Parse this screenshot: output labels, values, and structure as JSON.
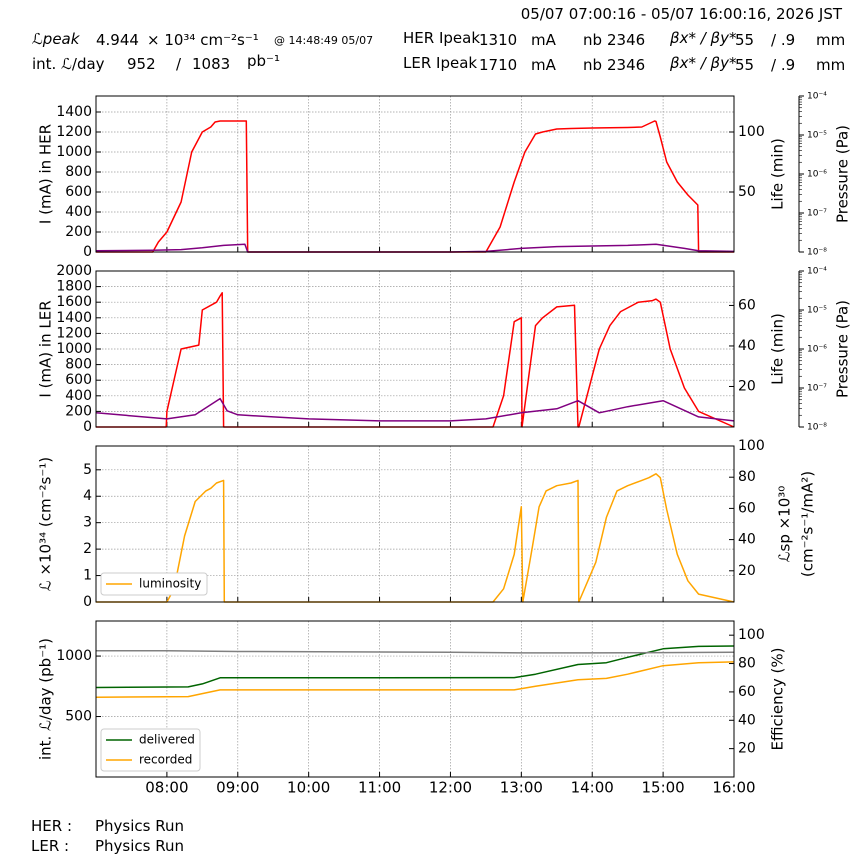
{
  "header": {
    "time_range": "05/07 07:00:16 - 05/07 16:00:16, 2026 JST",
    "lpeak_label": "ℒpeak",
    "lpeak_value": "4.944",
    "lpeak_units": "× 10³⁴ cm⁻²s⁻¹",
    "lpeak_time": "@ 14:48:49 05/07",
    "intl_label": "int. ℒ/day",
    "intl_value": "952",
    "intl_slash": "/",
    "intl_total": "1083",
    "intl_units": "pb⁻¹",
    "her_label": "HER Ipeak",
    "her_current": "1310",
    "ler_label": "LER Ipeak",
    "ler_current": "1710",
    "current_unit": "mA",
    "nb_label": "nb",
    "her_nb": "2346",
    "ler_nb": "2346",
    "beta_label": "βx* / βy*",
    "beta_x": "55",
    "beta_y": "/ .9",
    "beta_unit": "mm"
  },
  "footer": {
    "her_label": "HER :",
    "her_status": "Physics Run",
    "ler_label": "LER :",
    "ler_status": "Physics Run"
  },
  "colors": {
    "current": "#ff0000",
    "life": "#800080",
    "pressure": "#00ffff",
    "luminosity": "#ffa500",
    "specific": "#0000ff",
    "delivered": "#006400",
    "recorded": "#ffa500",
    "efficiency": "#808080"
  },
  "chart_data": [
    {
      "type": "line",
      "ylabel": "I (mA) in HER",
      "y2label": "Life (min)",
      "y3label": "Pressure (Pa)",
      "ylim": [
        0,
        1560
      ],
      "yticks": [
        0,
        200,
        400,
        600,
        800,
        1000,
        1200,
        1400
      ],
      "y2lim": [
        0,
        130
      ],
      "y2ticks": [
        50,
        100
      ],
      "y3ticks": [
        "10⁻⁸",
        "10⁻⁷",
        "10⁻⁶",
        "10⁻⁵",
        "10⁻⁴"
      ],
      "series": [
        {
          "role": "current",
          "x": [
            7.0,
            7.8,
            7.88,
            8.0,
            8.2,
            8.35,
            8.5,
            8.62,
            8.68,
            8.75,
            8.85,
            9.0,
            9.12,
            9.14,
            9.2,
            12.0,
            12.5,
            12.7,
            12.9,
            13.0,
            13.05,
            13.2,
            13.3,
            13.5,
            13.7,
            14.0,
            14.5,
            14.7,
            14.85,
            14.88,
            14.9,
            14.96,
            15.05,
            15.2,
            15.35,
            15.49,
            15.5,
            16.0
          ],
          "y": [
            0,
            0,
            100,
            200,
            500,
            1000,
            1200,
            1250,
            1300,
            1310,
            1310,
            1310,
            1310,
            0,
            0,
            0,
            0,
            250,
            700,
            900,
            1000,
            1180,
            1200,
            1230,
            1235,
            1240,
            1245,
            1250,
            1300,
            1310,
            1305,
            1150,
            900,
            700,
            570,
            470,
            0,
            0
          ]
        },
        {
          "role": "life",
          "axis": "y2",
          "x": [
            7.0,
            7.8,
            8.2,
            8.5,
            8.8,
            9.1,
            9.14,
            12.0,
            12.5,
            13.0,
            13.5,
            14.0,
            14.5,
            14.9,
            15.3,
            15.5,
            16.0
          ],
          "y": [
            1,
            1.5,
            2,
            3.5,
            5.5,
            6.5,
            0,
            0,
            0.5,
            3,
            4.5,
            5,
            5.5,
            6.5,
            3,
            1,
            0.5
          ]
        }
      ]
    },
    {
      "type": "line",
      "ylabel": "I (mA) in LER",
      "y2label": "Life (min)",
      "y3label": "Pressure (Pa)",
      "ylim": [
        0,
        2000
      ],
      "yticks": [
        0,
        200,
        400,
        600,
        800,
        1000,
        1200,
        1400,
        1600,
        1800,
        2000
      ],
      "y2lim": [
        0,
        77
      ],
      "y2ticks": [
        20,
        40,
        60
      ],
      "y3ticks": [
        "10⁻⁸",
        "10⁻⁷",
        "10⁻⁶",
        "10⁻⁵",
        "10⁻⁴"
      ],
      "series": [
        {
          "role": "current",
          "x": [
            7.0,
            7.99,
            8.0,
            8.2,
            8.45,
            8.5,
            8.7,
            8.75,
            8.78,
            8.8,
            12.0,
            12.6,
            12.75,
            12.9,
            13.0,
            13.01,
            13.2,
            13.3,
            13.5,
            13.75,
            13.8,
            13.81,
            14.1,
            14.25,
            14.4,
            14.65,
            14.85,
            14.9,
            14.96,
            15.1,
            15.3,
            15.5,
            16.0
          ],
          "y": [
            0,
            0,
            200,
            1000,
            1050,
            1500,
            1600,
            1680,
            1720,
            0,
            0,
            0,
            400,
            1350,
            1400,
            0,
            1300,
            1400,
            1540,
            1560,
            0,
            0,
            1000,
            1300,
            1480,
            1600,
            1620,
            1640,
            1600,
            1000,
            500,
            200,
            0
          ]
        },
        {
          "role": "life",
          "axis": "y2",
          "x": [
            7.0,
            8.0,
            8.4,
            8.75,
            8.85,
            9.0,
            9.5,
            10.0,
            11.0,
            12.0,
            12.5,
            13.0,
            13.5,
            13.8,
            14.1,
            14.5,
            15.0,
            15.5,
            16.0
          ],
          "y": [
            7,
            4,
            6,
            14,
            8,
            6,
            5,
            4,
            3,
            3,
            4,
            7,
            9,
            13,
            7,
            10,
            13,
            5,
            3
          ]
        }
      ]
    },
    {
      "type": "line",
      "ylabel": "ℒ ×10³⁴ (cm⁻²s⁻¹)",
      "y2label": "ℒsp ×10³⁰",
      "y2label2": "(cm⁻²s⁻¹/mA²)",
      "ylim": [
        0,
        5.9
      ],
      "yticks": [
        0,
        1,
        2,
        3,
        4,
        5
      ],
      "y2lim": [
        0,
        100
      ],
      "y2ticks": [
        20,
        40,
        60,
        80,
        100
      ],
      "legend": "luminosity",
      "series": [
        {
          "role": "luminosity",
          "name": "luminosity",
          "x": [
            7.0,
            8.0,
            8.1,
            8.25,
            8.4,
            8.55,
            8.62,
            8.7,
            8.8,
            8.81,
            12.0,
            12.6,
            12.75,
            12.9,
            13.0,
            13.02,
            13.15,
            13.25,
            13.35,
            13.5,
            13.7,
            13.8,
            13.81,
            14.05,
            14.2,
            14.35,
            14.5,
            14.7,
            14.8,
            14.9,
            14.96,
            15.05,
            15.2,
            15.35,
            15.5,
            16.0
          ],
          "y": [
            0,
            0,
            0.5,
            2.5,
            3.8,
            4.2,
            4.3,
            4.5,
            4.6,
            0,
            0,
            0,
            0.5,
            1.8,
            3.6,
            0,
            2.0,
            3.6,
            4.2,
            4.4,
            4.5,
            4.6,
            0,
            1.5,
            3.2,
            4.2,
            4.4,
            4.6,
            4.7,
            4.85,
            4.7,
            3.5,
            1.8,
            0.8,
            0.3,
            0
          ]
        }
      ]
    },
    {
      "type": "line",
      "ylabel": "int. ℒ/day (pb⁻¹)",
      "y2label": "Efficiency (%)",
      "ylim": [
        0,
        1290
      ],
      "yticks": [
        500,
        1000
      ],
      "y2lim": [
        0,
        110
      ],
      "y2ticks": [
        20,
        40,
        60,
        80,
        100
      ],
      "legend": [
        "delivered",
        "recorded"
      ],
      "x_ticks": [
        "08:00",
        "09:00",
        "10:00",
        "11:00",
        "12:00",
        "13:00",
        "14:00",
        "15:00",
        "16:00"
      ],
      "series": [
        {
          "role": "delivered",
          "name": "delivered",
          "x": [
            7.0,
            8.3,
            8.5,
            8.75,
            12.9,
            13.2,
            13.8,
            14.2,
            14.5,
            15.0,
            15.5,
            16.0
          ],
          "y": [
            740,
            745,
            770,
            820,
            822,
            850,
            930,
            945,
            990,
            1060,
            1080,
            1083
          ]
        },
        {
          "role": "recorded",
          "name": "recorded",
          "x": [
            7.0,
            8.3,
            8.5,
            8.75,
            12.9,
            13.2,
            13.8,
            14.2,
            14.5,
            15.0,
            15.5,
            16.0
          ],
          "y": [
            660,
            665,
            690,
            720,
            720,
            750,
            805,
            815,
            850,
            920,
            945,
            952
          ]
        },
        {
          "role": "efficiency",
          "axis": "y2",
          "x": [
            7.0,
            8.0,
            9.0,
            12.0,
            13.0,
            14.0,
            15.0,
            16.0
          ],
          "y": [
            89,
            89,
            88.5,
            88,
            87.5,
            87.5,
            87.7,
            88
          ]
        }
      ]
    }
  ]
}
